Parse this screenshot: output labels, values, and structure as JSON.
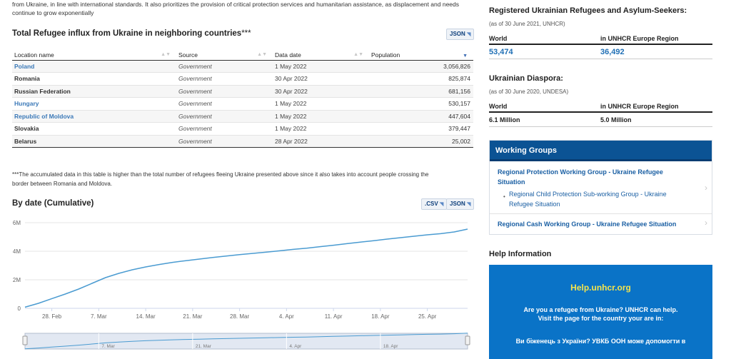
{
  "intro": {
    "line1": "from Ukraine, in line with international standards. It also prioritizes the provision of critical protection services and humanitarian assistance, as displacement and needs",
    "line2": "continue to grow exponentially"
  },
  "influx": {
    "title": "Total Refugee influx from Ukraine in neighboring countries",
    "stars": "***",
    "json_label": "JSON",
    "columns": [
      "Location name",
      "Source",
      "Data date",
      "Population"
    ],
    "rows": [
      {
        "location": "Poland",
        "source": "Government",
        "date": "1 May 2022",
        "population": "3,056,826",
        "link": true
      },
      {
        "location": "Romania",
        "source": "Government",
        "date": "30 Apr 2022",
        "population": "825,874",
        "link": false
      },
      {
        "location": "Russian Federation",
        "source": "Government",
        "date": "30 Apr 2022",
        "population": "681,156",
        "link": false
      },
      {
        "location": "Hungary",
        "source": "Government",
        "date": "1 May 2022",
        "population": "530,157",
        "link": true
      },
      {
        "location": "Republic of Moldova",
        "source": "Government",
        "date": "1 May 2022",
        "population": "447,604",
        "link": true
      },
      {
        "location": "Slovakia",
        "source": "Government",
        "date": "1 May 2022",
        "population": "379,447",
        "link": false
      },
      {
        "location": "Belarus",
        "source": "Government",
        "date": "28 Apr 2022",
        "population": "25,002",
        "link": false
      }
    ],
    "footnote_line1": "***The accumulated data in this table is higher than the total number of refugees fleeing Ukraine presented above since it also takes into account people crossing the",
    "footnote_line2": "border between Romania and Moldova."
  },
  "by_date": {
    "title": "By date (Cumulative)",
    "csv_label": ".CSV",
    "json_label": "JSON"
  },
  "chart_data": {
    "type": "line",
    "title": "By date (Cumulative)",
    "x_ticks": [
      "28. Feb",
      "7. Mar",
      "14. Mar",
      "21. Mar",
      "28. Mar",
      "4. Apr",
      "11. Apr",
      "18. Apr",
      "25. Apr"
    ],
    "y_ticks": [
      "0",
      "2M",
      "4M",
      "6M"
    ],
    "ylim": [
      0,
      6000000
    ],
    "series": [
      {
        "x": [
          "24 Feb",
          "26 Feb",
          "28 Feb",
          "2 Mar",
          "4 Mar",
          "6 Mar",
          "8 Mar",
          "10 Mar",
          "12 Mar",
          "14 Mar",
          "16 Mar",
          "18 Mar",
          "20 Mar",
          "22 Mar",
          "24 Mar",
          "26 Mar",
          "28 Mar",
          "30 Mar",
          "1 Apr",
          "3 Apr",
          "5 Apr",
          "7 Apr",
          "9 Apr",
          "11 Apr",
          "13 Apr",
          "15 Apr",
          "17 Apr",
          "19 Apr",
          "21 Apr",
          "23 Apr",
          "25 Apr",
          "27 Apr",
          "29 Apr",
          "1 May"
        ],
        "values": [
          80000,
          350000,
          680000,
          1000000,
          1350000,
          1750000,
          2150000,
          2450000,
          2700000,
          2900000,
          3070000,
          3220000,
          3340000,
          3450000,
          3560000,
          3660000,
          3760000,
          3850000,
          3940000,
          4030000,
          4130000,
          4210000,
          4320000,
          4420000,
          4530000,
          4640000,
          4740000,
          4850000,
          4950000,
          5050000,
          5150000,
          5230000,
          5350000,
          5550000
        ]
      }
    ],
    "navigator_ticks": [
      "7. Mar",
      "21. Mar",
      "4. Apr",
      "18. Apr"
    ]
  },
  "registered": {
    "title": "Registered Ukrainian Refugees and Asylum-Seekers:",
    "subtitle": "(as of 30 June 2021, UNHCR)",
    "col1": "World",
    "col2": "in UNHCR Europe Region",
    "val1": "53,474",
    "val2": "36,492"
  },
  "diaspora": {
    "title": "Ukrainian Diaspora:",
    "subtitle": "(as of 30 June 2020, UNDESA)",
    "col1": "World",
    "col2": "in UNHCR Europe Region",
    "val1": "6.1 Million",
    "val2": "5.0 Million"
  },
  "working_groups": {
    "title": "Working Groups",
    "item1_line1": "Regional Protection Working Group - Ukraine Refugee",
    "item1_line2": "Situation",
    "item1_sub_line1": "Regional Child Protection Sub-working Group - Ukraine",
    "item1_sub_line2": "Refugee Situation",
    "item2": "Regional Cash Working Group - Ukraine Refugee Situation"
  },
  "help": {
    "title": "Help Information",
    "link": "Help.unhcr.org",
    "text_line1": "Are you a refugee from Ukraine? UNHCR can help.",
    "text_line2": "Visit the page for the country your are in:",
    "ua_text": "Ви біженець з України? УВКБ ООН може допомогти в"
  },
  "colors": {
    "line": "#4a9bd1",
    "navigator_bg": "#e2e8f2",
    "wg_header": "#0b5394",
    "help_bg": "#0a73c7"
  }
}
